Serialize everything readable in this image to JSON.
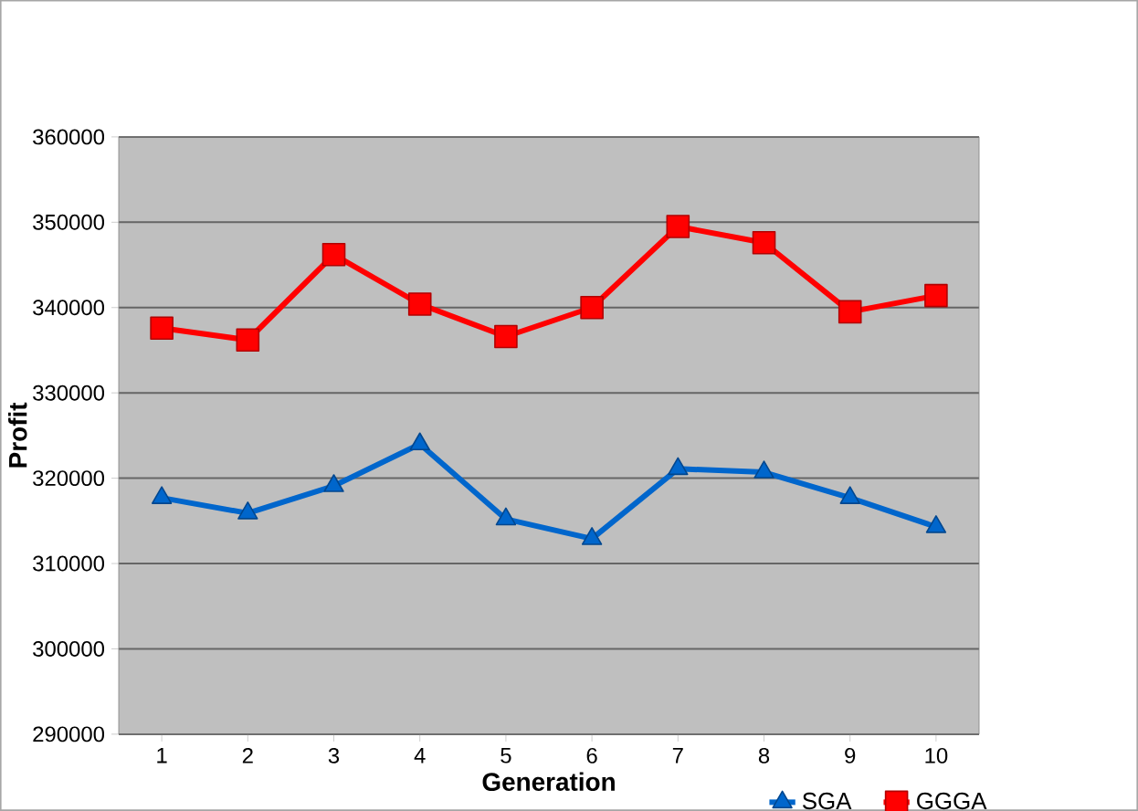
{
  "chart_data": {
    "type": "line",
    "xlabel": "Generation",
    "ylabel": "Profit",
    "categories": [
      "1",
      "2",
      "3",
      "4",
      "5",
      "6",
      "7",
      "8",
      "9",
      "10"
    ],
    "series": [
      {
        "name": "SGA",
        "color": "#0066cc",
        "marker": "triangle",
        "values": [
          317700,
          315900,
          319100,
          324000,
          315200,
          312900,
          321100,
          320700,
          317700,
          314300
        ]
      },
      {
        "name": "GGGA",
        "color": "#ff0000",
        "marker": "square",
        "values": [
          337600,
          336200,
          346200,
          340400,
          336600,
          340000,
          349500,
          347600,
          339500,
          341400
        ]
      }
    ],
    "ylim": [
      290000,
      360000
    ],
    "yticks": [
      290000,
      300000,
      310000,
      320000,
      330000,
      340000,
      350000,
      360000
    ],
    "grid": "y",
    "legend": "bottom right",
    "line_style": "solid"
  }
}
